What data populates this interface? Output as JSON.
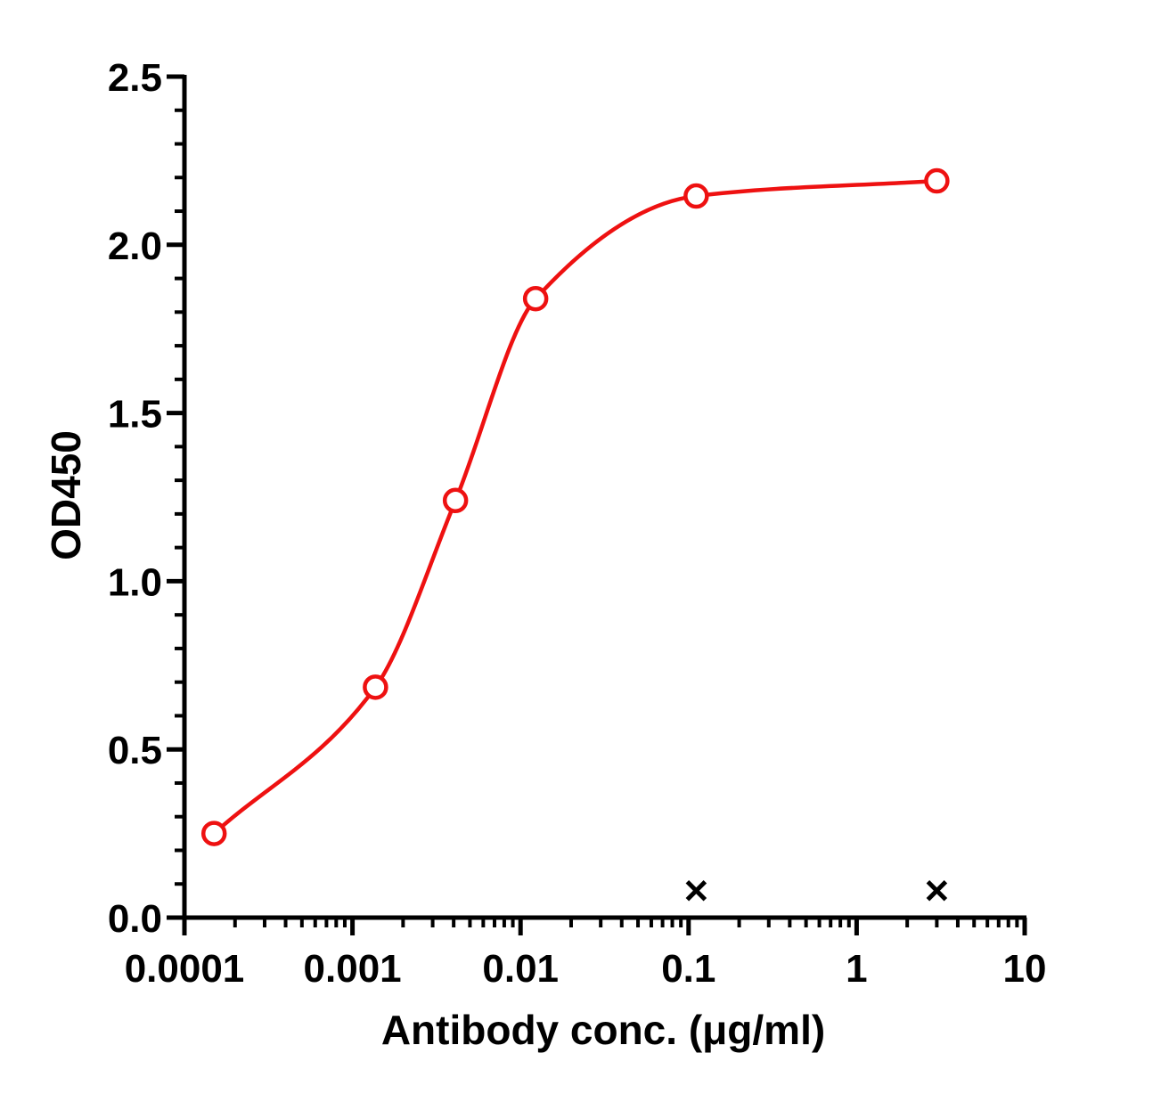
{
  "chart_data": {
    "type": "scatter",
    "xlabel": "Antibody conc. (μg/ml)",
    "ylabel": "OD450",
    "xscale": "log",
    "xlim": [
      0.0001,
      10
    ],
    "ylim": [
      0,
      2.5
    ],
    "x_ticks": [
      "0.0001",
      "0.001",
      "0.01",
      "0.1",
      "1",
      "10"
    ],
    "y_ticks": [
      "0.0",
      "0.5",
      "1.0",
      "1.5",
      "2.0",
      "2.5"
    ],
    "grid": false,
    "legend": "none",
    "series": [
      {
        "marker": "circle",
        "color": "#ee1111",
        "fit_curve": "sigmoidal",
        "points": [
          {
            "x": 0.00015,
            "y": 0.25
          },
          {
            "x": 0.00137,
            "y": 0.685
          },
          {
            "x": 0.0041,
            "y": 1.24
          },
          {
            "x": 0.0123,
            "y": 1.84
          },
          {
            "x": 0.111,
            "y": 2.145
          },
          {
            "x": 3.0,
            "y": 2.19
          }
        ]
      },
      {
        "marker": "x",
        "color": "#000000",
        "points": [
          {
            "x": 0.111,
            "y": 0.08
          },
          {
            "x": 3.0,
            "y": 0.08
          }
        ]
      }
    ]
  }
}
